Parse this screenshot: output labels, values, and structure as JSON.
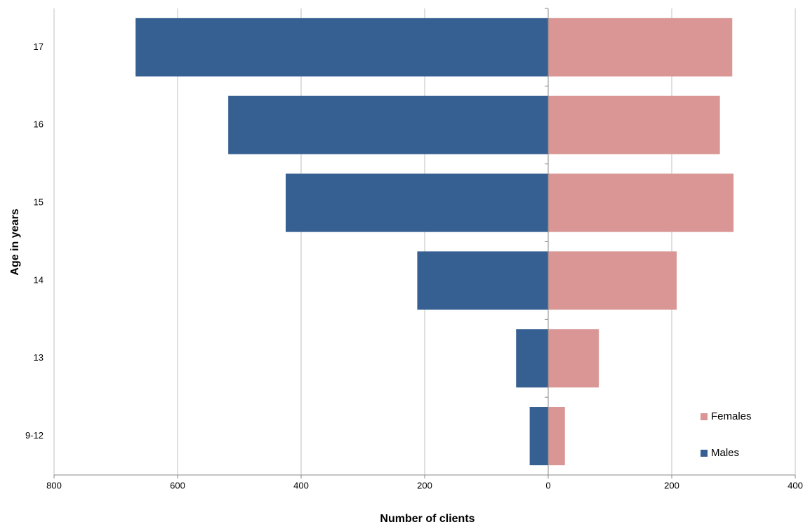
{
  "chart_data": {
    "type": "bar",
    "orientation": "horizontal",
    "x_label": "Number of clients",
    "y_label": "Age in years",
    "categories": [
      "17",
      "16",
      "15",
      "14",
      "13",
      "9-12"
    ],
    "series": [
      {
        "name": "Females",
        "color": "#d99694",
        "values": [
          298,
          278,
          300,
          208,
          82,
          27
        ]
      },
      {
        "name": "Males",
        "color": "#376092",
        "values": [
          -668,
          -518,
          -425,
          -212,
          -52,
          -30
        ]
      }
    ],
    "xlim": [
      -800,
      400
    ],
    "xticks": [
      {
        "value": -800,
        "label": "800"
      },
      {
        "value": -600,
        "label": "600"
      },
      {
        "value": -400,
        "label": "400"
      },
      {
        "value": -200,
        "label": "200"
      },
      0,
      200,
      400
    ],
    "grid": true,
    "legend": "lower right"
  }
}
